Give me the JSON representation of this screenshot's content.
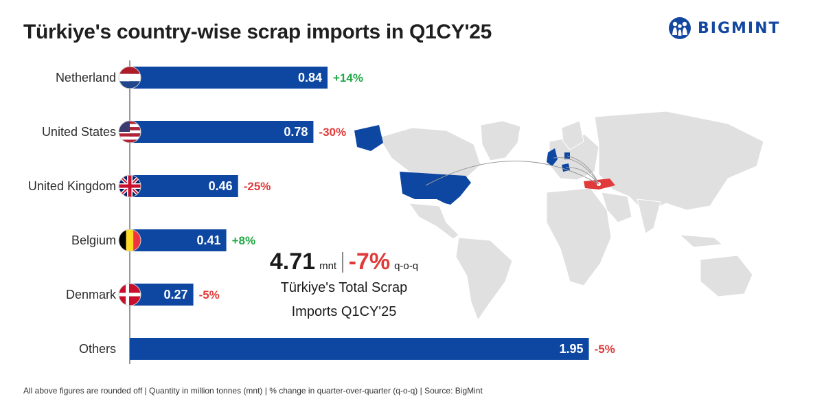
{
  "header": {
    "title": "Türkiye's country-wise scrap imports in Q1CY'25"
  },
  "logo": {
    "text": "BIGMINT",
    "color": "#1347a0"
  },
  "colors": {
    "bar": "#0d47a1",
    "positive": "#22a845",
    "negative": "#e03a3a"
  },
  "chart_data": {
    "type": "bar",
    "orientation": "horizontal",
    "title": "Türkiye's country-wise scrap imports in Q1CY'25",
    "categories": [
      "Netherland",
      "United States",
      "United Kingdom",
      "Belgium",
      "Denmark",
      "Others"
    ],
    "values": [
      0.84,
      0.78,
      0.46,
      0.41,
      0.27,
      1.95
    ],
    "value_labels": [
      "0.84",
      "0.78",
      "0.46",
      "0.41",
      "0.27",
      "1.95"
    ],
    "changes": [
      "+14%",
      "-30%",
      "-25%",
      "+8%",
      "-5%",
      "-5%"
    ],
    "flags": [
      "netherlands-flag",
      "usa-flag",
      "uk-flag",
      "belgium-flag",
      "denmark-flag",
      ""
    ],
    "xlim": [
      0,
      2.1
    ],
    "grid": false
  },
  "total": {
    "value": "4.71",
    "unit": "mnt",
    "change": "-7%",
    "period": "q-o-q",
    "caption_line1": "Türkiye's Total Scrap",
    "caption_line2": "Imports Q1CY'25"
  },
  "footnote": "All above figures are rounded off  |  Quantity in million tonnes (mnt)  |  % change in quarter-over-quarter (q-o-q)  |  Source: BigMint",
  "map": {
    "highlighted_sources": [
      "United States",
      "United Kingdom",
      "Netherland",
      "Belgium",
      "Denmark"
    ],
    "highlight_color": "#0d47a1",
    "destination": "Türkiye",
    "destination_color": "#e03a3a",
    "land_color": "#e0e0e0"
  }
}
